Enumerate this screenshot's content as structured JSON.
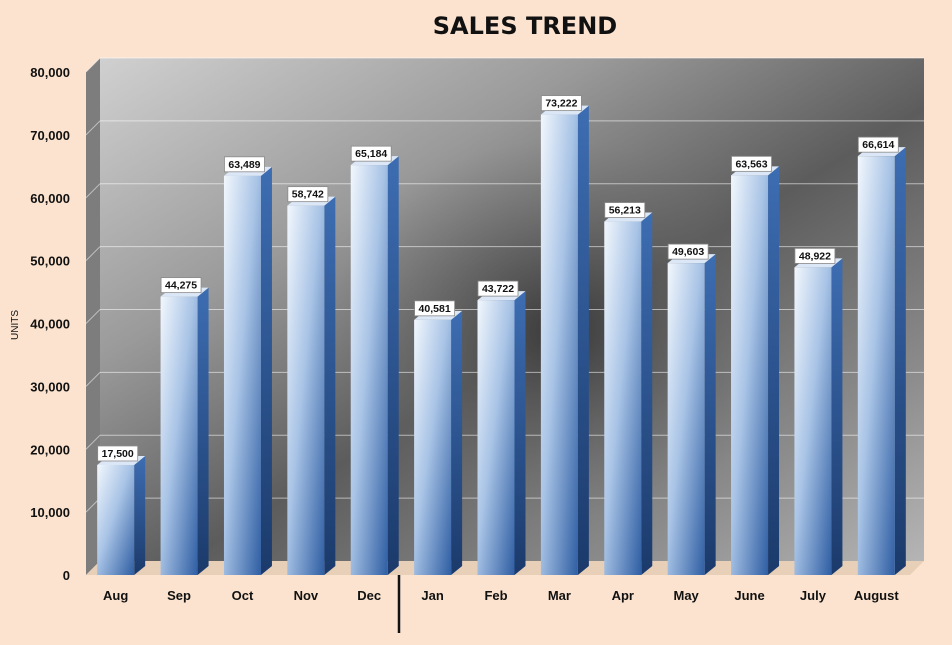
{
  "chart_data": {
    "type": "bar",
    "title": "SALES TREND",
    "ylabel": "UNITS",
    "xlabel": "",
    "categories": [
      "Aug",
      "Sep",
      "Oct",
      "Nov",
      "Dec",
      "Jan",
      "Feb",
      "Mar",
      "Apr",
      "May",
      "June",
      "July",
      "August"
    ],
    "values": [
      17500,
      44275,
      63489,
      58742,
      65184,
      40581,
      43722,
      73222,
      56213,
      49603,
      63563,
      48922,
      66614
    ],
    "data_labels": [
      "17,500",
      "44,275",
      "63,489",
      "58,742",
      "65,184",
      "40,581",
      "43,722",
      "73,222",
      "56,213",
      "49,603",
      "63,563",
      "48,922",
      "66,614"
    ],
    "ylim": [
      0,
      80000
    ],
    "y_ticks": [
      0,
      10000,
      20000,
      30000,
      40000,
      50000,
      60000,
      70000,
      80000
    ],
    "y_tick_labels": [
      "0",
      "10,000",
      "20,000",
      "30,000",
      "40,000",
      "50,000",
      "60,000",
      "70,000",
      "80,000"
    ],
    "grid": true,
    "legend": "none",
    "style": "3d-column",
    "bar_color_light": "#eaf2fc",
    "bar_color_dark": "#2e5fa6",
    "background_color": "#fbe3cf",
    "plot_background": "photo of a car showroom (grayscale)"
  }
}
